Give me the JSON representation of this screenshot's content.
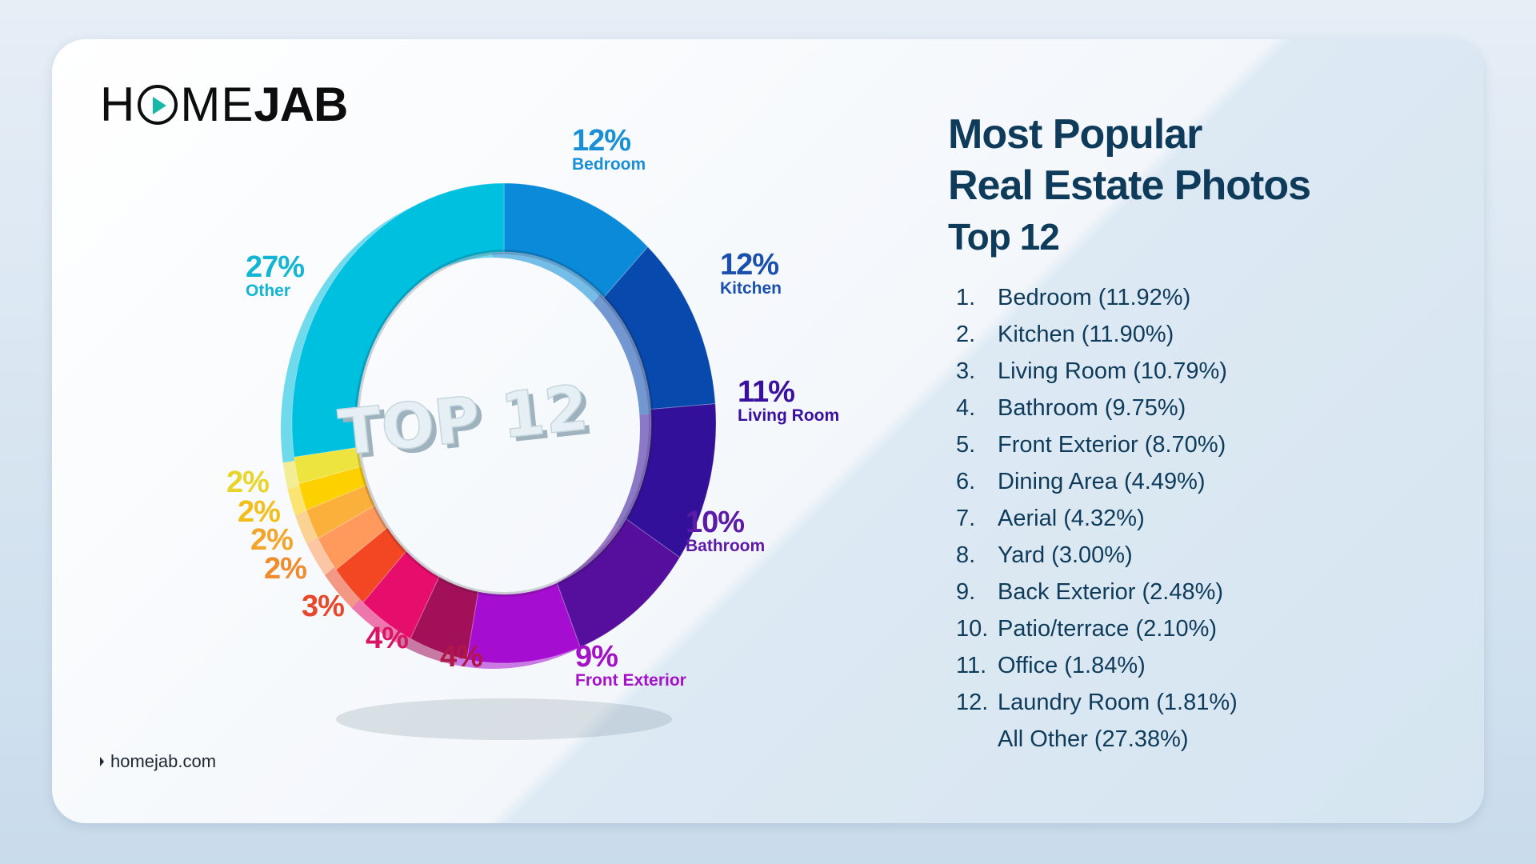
{
  "brand": {
    "logo_left": "H",
    "logo_mid": "ME",
    "logo_bold": "JAB",
    "website": "homejab.com"
  },
  "heading": {
    "title_line1": "Most Popular",
    "title_line2": "Real Estate Photos",
    "subtitle": "Top 12"
  },
  "list": [
    {
      "num": "1.",
      "text": "Bedroom (11.92%)"
    },
    {
      "num": "2.",
      "text": "Kitchen (11.90%)"
    },
    {
      "num": "3.",
      "text": "Living Room (10.79%)"
    },
    {
      "num": "4.",
      "text": "Bathroom (9.75%)"
    },
    {
      "num": "5.",
      "text": "Front Exterior (8.70%)"
    },
    {
      "num": "6.",
      "text": "Dining Area (4.49%)"
    },
    {
      "num": "7.",
      "text": "Aerial (4.32%)"
    },
    {
      "num": "8.",
      "text": "Yard (3.00%)"
    },
    {
      "num": "9.",
      "text": "Back Exterior (2.48%)"
    },
    {
      "num": "10.",
      "text": "Patio/terrace (2.10%)"
    },
    {
      "num": "11.",
      "text": "Office (1.84%)"
    },
    {
      "num": "12.",
      "text": "Laundry Room (1.81%)"
    },
    {
      "num": "",
      "text": "All Other (27.38%)"
    }
  ],
  "chart_data": {
    "type": "pie",
    "style": "donut",
    "center_text": "TOP 12",
    "categories": [
      "Bedroom",
      "Kitchen",
      "Living Room",
      "Bathroom",
      "Front Exterior",
      "Dining Area",
      "Aerial",
      "Yard",
      "Back Exterior",
      "Patio/terrace",
      "Office",
      "Laundry Room",
      "Other"
    ],
    "values": [
      11.92,
      11.9,
      10.79,
      9.75,
      8.7,
      4.49,
      4.32,
      3.0,
      2.48,
      2.1,
      1.84,
      1.81,
      27.38
    ],
    "labels": [
      {
        "pct": "12%",
        "name": "Bedroom",
        "color": "#1a8fd6"
      },
      {
        "pct": "12%",
        "name": "Kitchen",
        "color": "#1b4fae"
      },
      {
        "pct": "11%",
        "name": "Living Room",
        "color": "#3a10a0"
      },
      {
        "pct": "10%",
        "name": "Bathroom",
        "color": "#5c1aa8"
      },
      {
        "pct": "9%",
        "name": "Front Exterior",
        "color": "#a312c8"
      },
      {
        "pct": "4%",
        "name": "",
        "color": "#b0164c"
      },
      {
        "pct": "4%",
        "name": "",
        "color": "#d81565"
      },
      {
        "pct": "3%",
        "name": "",
        "color": "#e8472b"
      },
      {
        "pct": "2%",
        "name": "",
        "color": "#f08c2c"
      },
      {
        "pct": "2%",
        "name": "",
        "color": "#f3a52a"
      },
      {
        "pct": "2%",
        "name": "",
        "color": "#f2bf1a"
      },
      {
        "pct": "2%",
        "name": "",
        "color": "#e9d42c"
      },
      {
        "pct": "27%",
        "name": "Other",
        "color": "#13b6d2"
      }
    ],
    "colors": [
      "#0a8ad8",
      "#0849ad",
      "#33109a",
      "#560f9d",
      "#a50ed0",
      "#a3105a",
      "#e60d6c",
      "#f34724",
      "#ff9a5c",
      "#fbb03c",
      "#fdd100",
      "#eee43f",
      "#00c0e0"
    ],
    "title": "Most Popular Real Estate Photos"
  }
}
